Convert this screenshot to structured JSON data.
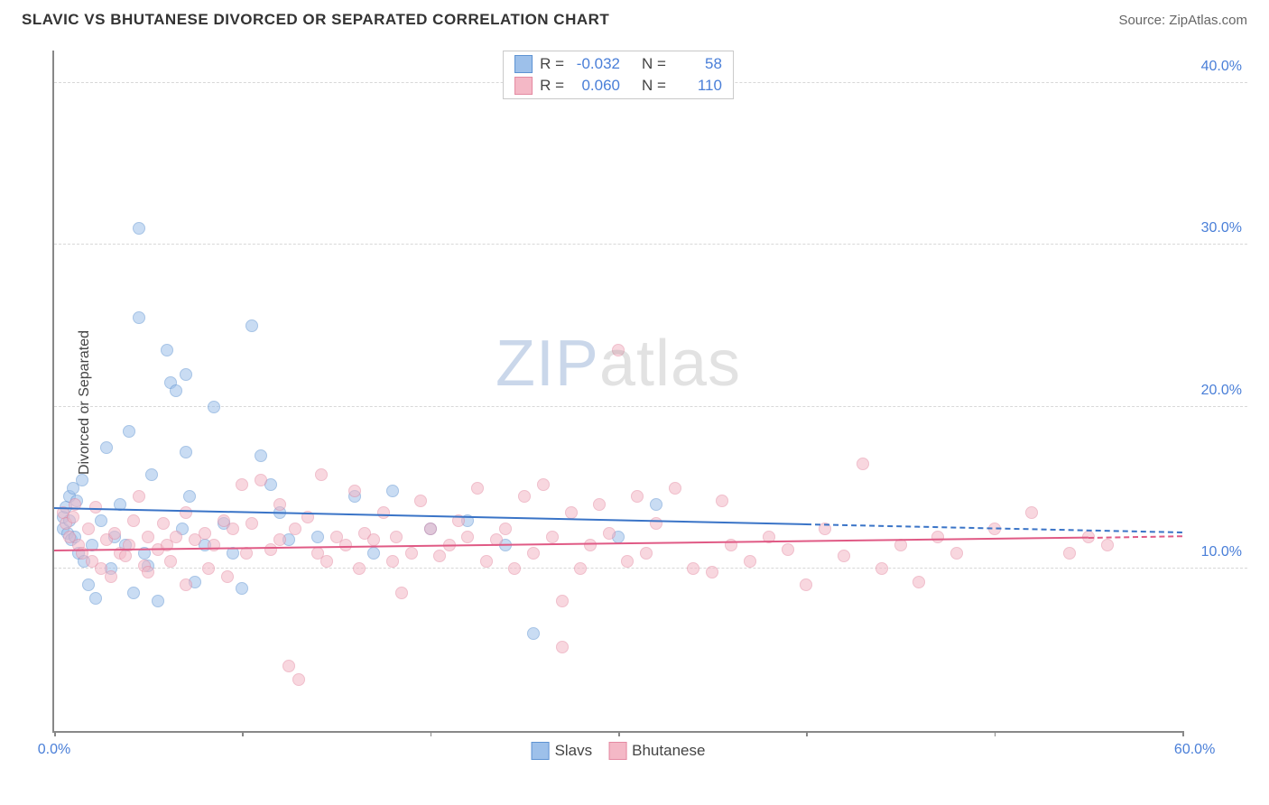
{
  "header": {
    "title": "SLAVIC VS BHUTANESE DIVORCED OR SEPARATED CORRELATION CHART",
    "source": "Source: ZipAtlas.com"
  },
  "chart": {
    "type": "scatter",
    "y_axis_label": "Divorced or Separated",
    "xlim": [
      0,
      60
    ],
    "ylim": [
      0,
      42
    ],
    "x_ticks": [
      0,
      10,
      20,
      30,
      40,
      50,
      60
    ],
    "x_tick_labels": {
      "0": "0.0%",
      "60": "60.0%"
    },
    "y_gridlines": [
      10,
      20,
      30,
      40
    ],
    "y_tick_labels": {
      "10": "10.0%",
      "20": "20.0%",
      "30": "30.0%",
      "40": "40.0%"
    },
    "background_color": "#ffffff",
    "grid_color": "#d8d8d8",
    "axis_color": "#888888",
    "tick_label_color": "#4a7fd8",
    "marker_radius": 7,
    "marker_opacity": 0.55,
    "watermark": {
      "text_a": "ZIP",
      "text_b": "atlas",
      "color_a": "rgba(90,130,190,0.32)",
      "color_b": "rgba(150,150,150,0.28)",
      "fontsize": 72
    }
  },
  "series": [
    {
      "name": "Slavs",
      "fill_color": "#9dc0ea",
      "stroke_color": "#5e93d2",
      "R": "-0.032",
      "N": "58",
      "trend": {
        "x1": 0,
        "y1": 13.8,
        "x2": 40,
        "y2": 12.8,
        "x_dash_end": 60,
        "y_dash_end": 12.3,
        "color": "#3a74c7"
      },
      "points": [
        [
          0.5,
          12.5
        ],
        [
          0.5,
          13.2
        ],
        [
          0.6,
          13.8
        ],
        [
          0.7,
          12.2
        ],
        [
          0.8,
          13.0
        ],
        [
          0.8,
          14.5
        ],
        [
          0.9,
          11.8
        ],
        [
          1.0,
          15.0
        ],
        [
          1.1,
          12.0
        ],
        [
          1.2,
          14.2
        ],
        [
          1.3,
          11.0
        ],
        [
          1.5,
          15.5
        ],
        [
          1.6,
          10.5
        ],
        [
          1.8,
          9.0
        ],
        [
          2.0,
          11.5
        ],
        [
          2.2,
          8.2
        ],
        [
          2.5,
          13.0
        ],
        [
          2.8,
          17.5
        ],
        [
          3.0,
          10.0
        ],
        [
          3.2,
          12.0
        ],
        [
          3.5,
          14.0
        ],
        [
          3.8,
          11.5
        ],
        [
          4.0,
          18.5
        ],
        [
          4.2,
          8.5
        ],
        [
          4.5,
          25.5
        ],
        [
          4.5,
          31.0
        ],
        [
          4.8,
          11.0
        ],
        [
          5.0,
          10.2
        ],
        [
          5.2,
          15.8
        ],
        [
          5.5,
          8.0
        ],
        [
          6.0,
          23.5
        ],
        [
          6.2,
          21.5
        ],
        [
          6.5,
          21.0
        ],
        [
          6.8,
          12.5
        ],
        [
          7.0,
          22.0
        ],
        [
          7.0,
          17.2
        ],
        [
          7.2,
          14.5
        ],
        [
          7.5,
          9.2
        ],
        [
          8.0,
          11.5
        ],
        [
          8.5,
          20.0
        ],
        [
          9.0,
          12.8
        ],
        [
          9.5,
          11.0
        ],
        [
          10.0,
          8.8
        ],
        [
          10.5,
          25.0
        ],
        [
          11.0,
          17.0
        ],
        [
          11.5,
          15.2
        ],
        [
          12.0,
          13.5
        ],
        [
          12.5,
          11.8
        ],
        [
          14.0,
          12.0
        ],
        [
          16.0,
          14.5
        ],
        [
          17.0,
          11.0
        ],
        [
          18.0,
          14.8
        ],
        [
          20.0,
          12.5
        ],
        [
          22.0,
          13.0
        ],
        [
          24.0,
          11.5
        ],
        [
          25.5,
          6.0
        ],
        [
          30.0,
          12.0
        ],
        [
          32.0,
          14.0
        ]
      ]
    },
    {
      "name": "Bhutanese",
      "fill_color": "#f4b8c6",
      "stroke_color": "#e48aa2",
      "R": "0.060",
      "N": "110",
      "trend": {
        "x1": 0,
        "y1": 11.2,
        "x2": 55,
        "y2": 12.0,
        "x_dash_end": 60,
        "y_dash_end": 12.1,
        "color": "#e05a85"
      },
      "points": [
        [
          0.5,
          13.5
        ],
        [
          0.6,
          12.8
        ],
        [
          0.8,
          12.0
        ],
        [
          1.0,
          13.2
        ],
        [
          1.1,
          14.0
        ],
        [
          1.3,
          11.5
        ],
        [
          1.5,
          11.0
        ],
        [
          1.8,
          12.5
        ],
        [
          2.0,
          10.5
        ],
        [
          2.2,
          13.8
        ],
        [
          2.5,
          10.0
        ],
        [
          2.8,
          11.8
        ],
        [
          3.0,
          9.5
        ],
        [
          3.2,
          12.2
        ],
        [
          3.5,
          11.0
        ],
        [
          3.8,
          10.8
        ],
        [
          4.0,
          11.5
        ],
        [
          4.2,
          13.0
        ],
        [
          4.5,
          14.5
        ],
        [
          4.8,
          10.2
        ],
        [
          5.0,
          12.0
        ],
        [
          5.0,
          9.8
        ],
        [
          5.5,
          11.2
        ],
        [
          5.8,
          12.8
        ],
        [
          6.0,
          11.5
        ],
        [
          6.2,
          10.5
        ],
        [
          6.5,
          12.0
        ],
        [
          7.0,
          13.5
        ],
        [
          7.0,
          9.0
        ],
        [
          7.5,
          11.8
        ],
        [
          8.0,
          12.2
        ],
        [
          8.2,
          10.0
        ],
        [
          8.5,
          11.5
        ],
        [
          9.0,
          13.0
        ],
        [
          9.2,
          9.5
        ],
        [
          9.5,
          12.5
        ],
        [
          10.0,
          15.2
        ],
        [
          10.2,
          11.0
        ],
        [
          10.5,
          12.8
        ],
        [
          11.0,
          15.5
        ],
        [
          11.5,
          11.2
        ],
        [
          12.0,
          14.0
        ],
        [
          12.0,
          11.8
        ],
        [
          12.5,
          4.0
        ],
        [
          12.8,
          12.5
        ],
        [
          13.0,
          3.2
        ],
        [
          13.5,
          13.2
        ],
        [
          14.0,
          11.0
        ],
        [
          14.2,
          15.8
        ],
        [
          14.5,
          10.5
        ],
        [
          15.0,
          12.0
        ],
        [
          15.5,
          11.5
        ],
        [
          16.0,
          14.8
        ],
        [
          16.2,
          10.0
        ],
        [
          16.5,
          12.2
        ],
        [
          17.0,
          11.8
        ],
        [
          17.5,
          13.5
        ],
        [
          18.0,
          10.5
        ],
        [
          18.2,
          12.0
        ],
        [
          18.5,
          8.5
        ],
        [
          19.0,
          11.0
        ],
        [
          19.5,
          14.2
        ],
        [
          20.0,
          12.5
        ],
        [
          20.5,
          10.8
        ],
        [
          21.0,
          11.5
        ],
        [
          21.5,
          13.0
        ],
        [
          22.0,
          12.0
        ],
        [
          22.5,
          15.0
        ],
        [
          23.0,
          10.5
        ],
        [
          23.5,
          11.8
        ],
        [
          24.0,
          12.5
        ],
        [
          24.5,
          10.0
        ],
        [
          25.0,
          14.5
        ],
        [
          25.5,
          11.0
        ],
        [
          26.0,
          15.2
        ],
        [
          26.5,
          12.0
        ],
        [
          27.0,
          8.0
        ],
        [
          27.0,
          5.2
        ],
        [
          27.5,
          13.5
        ],
        [
          28.0,
          10.0
        ],
        [
          28.5,
          11.5
        ],
        [
          29.0,
          14.0
        ],
        [
          29.5,
          12.2
        ],
        [
          30.0,
          23.5
        ],
        [
          30.5,
          10.5
        ],
        [
          31.0,
          14.5
        ],
        [
          31.5,
          11.0
        ],
        [
          32.0,
          12.8
        ],
        [
          33.0,
          15.0
        ],
        [
          34.0,
          10.0
        ],
        [
          35.0,
          9.8
        ],
        [
          35.5,
          14.2
        ],
        [
          36.0,
          11.5
        ],
        [
          37.0,
          10.5
        ],
        [
          38.0,
          12.0
        ],
        [
          39.0,
          11.2
        ],
        [
          40.0,
          9.0
        ],
        [
          41.0,
          12.5
        ],
        [
          42.0,
          10.8
        ],
        [
          43.0,
          16.5
        ],
        [
          44.0,
          10.0
        ],
        [
          45.0,
          11.5
        ],
        [
          46.0,
          9.2
        ],
        [
          47.0,
          12.0
        ],
        [
          48.0,
          11.0
        ],
        [
          50.0,
          12.5
        ],
        [
          52.0,
          13.5
        ],
        [
          54.0,
          11.0
        ],
        [
          55.0,
          12.0
        ],
        [
          56.0,
          11.5
        ]
      ]
    }
  ],
  "stats_box": {
    "r_label": "R =",
    "n_label": "N ="
  },
  "bottom_legend": {
    "items": [
      "Slavs",
      "Bhutanese"
    ]
  }
}
